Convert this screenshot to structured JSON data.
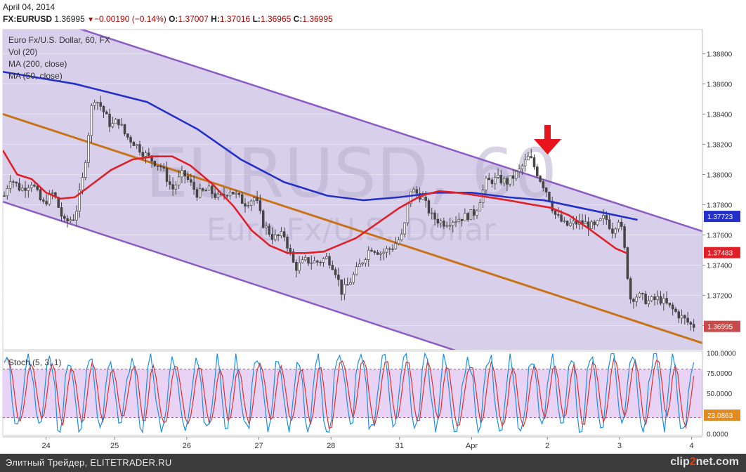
{
  "header": {
    "date": "April 04, 2014",
    "symbol": "FX:EURUSD",
    "last": "1.36995",
    "change": "−0.00190 (−0.14%)",
    "open_label": "O:",
    "open": "1.37007",
    "high_label": "H:",
    "high": "1.37016",
    "low_label": "L:",
    "low": "1.36965",
    "close_label": "C:",
    "close": "1.36995"
  },
  "legend": {
    "title": "Euro Fx/U.S. Dollar, 60, FX",
    "vol": "Vol (20)",
    "ma200": "MA (200, close)",
    "ma50": "MA (50, close)",
    "stoch": "Stoch (5, 3, 1)"
  },
  "watermark": {
    "big": "EURUSD, 60",
    "small": "Euro Fx/U.S. Dollar"
  },
  "footer": {
    "text": "Элитный Трейдер, ELITETRADER.RU",
    "logo_a": "clip",
    "logo_b": "2",
    "logo_c": "net.com"
  },
  "colors": {
    "channel_fill": "#d8d0ea",
    "channel_line": "#8c5cc4",
    "midline": "#c8731a",
    "ma200": "#2530c8",
    "ma50": "#e02028",
    "candle": "#444444",
    "stoch_fill": "#e9d3f5",
    "stoch_k": "#1f8fe0",
    "stoch_d": "#e0302a",
    "arrow": "#e8141c",
    "tag_blue": "#2530c8",
    "tag_red": "#e02028",
    "tag_price": "#c84a4a",
    "tag_stoch": "#e08a20"
  },
  "icons": {
    "arrow": "down-arrow-icon"
  },
  "chart_data": [
    {
      "type": "candlestick",
      "title": "Euro Fx/U.S. Dollar, 60, FX",
      "ylim": [
        1.3684,
        1.3896
      ],
      "y_ticks": [
        "1.38800",
        "1.38600",
        "1.38400",
        "1.38200",
        "1.38000",
        "1.37800",
        "1.37600",
        "1.37400",
        "1.37200",
        "1.37000"
      ],
      "x_tick_labels": [
        "24",
        "25",
        "26",
        "27",
        "28",
        "31",
        "Apr",
        "2",
        "3",
        "4"
      ],
      "price_tags": {
        "ma200": "1.37723",
        "ma50": "1.37483",
        "last": "1.36995"
      },
      "x_days": [
        23.6,
        24,
        24.5,
        25,
        26,
        27,
        28,
        28.6,
        29,
        29.5,
        30,
        30.5,
        31,
        32,
        33,
        33.3,
        33.5,
        34,
        34.3,
        34.6,
        35,
        35.3,
        35.6,
        36,
        36.3,
        36.6,
        37,
        37.2,
        37.4,
        37.6,
        37.8,
        38,
        38.2,
        38.4,
        38.6,
        38.8,
        39,
        39.2,
        39.4,
        39.6,
        39.8,
        40,
        40.2,
        40.4,
        40.6,
        40.8,
        41,
        41.2,
        41.4,
        41.6,
        41.8,
        42,
        42.2,
        42.4,
        42.6,
        42.8,
        43,
        43.2,
        43.4,
        43.6,
        43.8,
        44,
        44.2,
        44.4,
        44.6,
        44.8,
        45,
        45.2,
        45.4,
        45.6,
        45.8,
        46,
        46.2,
        46.4,
        46.6,
        46.8,
        47,
        47.2,
        47.4,
        47.6,
        47.8,
        48,
        48.2,
        48.4,
        48.6,
        48.8,
        49,
        49.2,
        49.4,
        49.6,
        49.8,
        50,
        50.2,
        50.4,
        50.6,
        50.8,
        51,
        51.2,
        51.4,
        51.6,
        51.8,
        52,
        52.2,
        52.4,
        52.6,
        52.8,
        53,
        53.2,
        53.4,
        53.6,
        53.8,
        54,
        54.2,
        54.4,
        54.6,
        54.8,
        55,
        55.2,
        55.4,
        55.6,
        55.8,
        56,
        56.2,
        56.4,
        56.6,
        56.8,
        57,
        57.2,
        57.4,
        57.6,
        57.8,
        58,
        58.2,
        58.4,
        58.6,
        58.8,
        59,
        59.2,
        59.4,
        59.6,
        59.8,
        60,
        60.2,
        60.4,
        60.6,
        60.8,
        61,
        61.2,
        61.4,
        61.6,
        61.8,
        62,
        62.2,
        62.4,
        62.6,
        62.8,
        63,
        63.2,
        63.4,
        63.6,
        63.8,
        64,
        64.2,
        64.4,
        64.6,
        64.8,
        65,
        65.2,
        65.4,
        65.6,
        65.8,
        66,
        66.2,
        66.4,
        66.6,
        66.8,
        67,
        67.2,
        67.4,
        67.6,
        67.8,
        68,
        68.2,
        68.4,
        68.6,
        68.8,
        69,
        69.2,
        69.4,
        69.6,
        69.8,
        70,
        70.2,
        70.4,
        70.6,
        70.8,
        71,
        71.2,
        71.4,
        71.6,
        71.8,
        72,
        72.2,
        72.4,
        72.6,
        72.8,
        73,
        73.2,
        73.4,
        73.6,
        73.8,
        74,
        74.2,
        74.4,
        74.6,
        74.8,
        75,
        75.2,
        75.4,
        75.6,
        75.8,
        76,
        76.2,
        76.4,
        76.6,
        76.8,
        77,
        77.2,
        77.4,
        77.6,
        77.8,
        78,
        78.2,
        78.4,
        78.6,
        78.8,
        79,
        79.2,
        79.4,
        79.6,
        79.8,
        80,
        80.2,
        80.4,
        80.6,
        80.8,
        81,
        81.2,
        81.4,
        81.6,
        81.8,
        82,
        82.2,
        82.4,
        82.6,
        82.8,
        83,
        83.2,
        83.4,
        83.6,
        83.8,
        84,
        84.2,
        84.4,
        84.6,
        84.8,
        85,
        85.2,
        85.4,
        85.6,
        85.8,
        86,
        86.2,
        86.4,
        86.6,
        86.8,
        87,
        87.2,
        87.4,
        87.6,
        87.8,
        88,
        88.2,
        88.4,
        88.6,
        88.8,
        89,
        89.2,
        89.4,
        89.6,
        89.8,
        90,
        90.2,
        90.4,
        90.6,
        90.8,
        91,
        91.2,
        91.4,
        91.6,
        91.8,
        92,
        92.2,
        92.4,
        92.6,
        92.8,
        93,
        93.2,
        93.4,
        93.6,
        93.8,
        94,
        94.2,
        94.4,
        94.6,
        94.8,
        95,
        95.2,
        95.4,
        95.6,
        95.8,
        96,
        96.2,
        96.4,
        96.6,
        96.8,
        97,
        97.2,
        97.4,
        97.6,
        97.8,
        98,
        98.2,
        98.4,
        98.6,
        98.8,
        99,
        99.2,
        99.4,
        99.6,
        99.8,
        100,
        100.2,
        100.4,
        100.6,
        100.8
      ],
      "price_path": [
        [
          23.5,
          1.3783
        ],
        [
          23.6,
          1.3798
        ],
        [
          23.75,
          1.379
        ],
        [
          23.9,
          1.3795
        ],
        [
          24.05,
          1.378
        ],
        [
          24.2,
          1.3788
        ],
        [
          24.35,
          1.3768
        ],
        [
          24.5,
          1.3772
        ],
        [
          24.62,
          1.38
        ],
        [
          24.75,
          1.3852
        ],
        [
          24.85,
          1.3846
        ],
        [
          25.0,
          1.3832
        ],
        [
          25.1,
          1.3836
        ],
        [
          25.2,
          1.3826
        ],
        [
          25.3,
          1.3822
        ],
        [
          25.5,
          1.3812
        ],
        [
          25.7,
          1.3805
        ],
        [
          25.85,
          1.379
        ],
        [
          26.0,
          1.3801
        ],
        [
          26.2,
          1.3787
        ],
        [
          26.35,
          1.379
        ],
        [
          26.5,
          1.3784
        ],
        [
          26.65,
          1.379
        ],
        [
          26.85,
          1.3781
        ],
        [
          27.0,
          1.3785
        ],
        [
          27.1,
          1.3768
        ],
        [
          27.25,
          1.3758
        ],
        [
          27.4,
          1.376
        ],
        [
          27.55,
          1.3738
        ],
        [
          27.7,
          1.3743
        ],
        [
          27.85,
          1.3742
        ],
        [
          28.0,
          1.3745
        ],
        [
          28.1,
          1.3738
        ],
        [
          28.2,
          1.3722
        ],
        [
          28.3,
          1.3728
        ],
        [
          28.45,
          1.374
        ],
        [
          28.6,
          1.3752
        ],
        [
          28.75,
          1.3748
        ],
        [
          28.9,
          1.3752
        ],
        [
          29.05,
          1.376
        ],
        [
          29.15,
          1.379
        ],
        [
          29.3,
          1.3786
        ],
        [
          29.45,
          1.3772
        ],
        [
          29.6,
          1.3768
        ],
        [
          29.75,
          1.377
        ],
        [
          29.9,
          1.3772
        ],
        [
          30.05,
          1.3775
        ],
        [
          30.2,
          1.3795
        ],
        [
          30.35,
          1.3797
        ],
        [
          30.5,
          1.3795
        ],
        [
          30.65,
          1.3802
        ],
        [
          30.8,
          1.3812
        ],
        [
          30.95,
          1.3797
        ],
        [
          31.05,
          1.3788
        ],
        [
          31.15,
          1.3774
        ],
        [
          31.3,
          1.3766
        ],
        [
          31.45,
          1.3768
        ],
        [
          31.55,
          1.3768
        ],
        [
          31.7,
          1.3765
        ],
        [
          31.85,
          1.3772
        ],
        [
          31.95,
          1.3763
        ],
        [
          32.05,
          1.3772
        ],
        [
          32.12,
          1.375
        ],
        [
          32.2,
          1.3718
        ],
        [
          32.3,
          1.372
        ],
        [
          32.45,
          1.3716
        ],
        [
          32.6,
          1.3718
        ],
        [
          32.75,
          1.3712
        ],
        [
          32.85,
          1.3708
        ],
        [
          32.95,
          1.3704
        ],
        [
          33.05,
          1.37
        ]
      ],
      "channel": {
        "upper": [
          [
            23.5,
            1.3913
          ],
          [
            33.1,
            1.3764
          ]
        ],
        "lower": [
          [
            23.5,
            1.3782
          ],
          [
            30.0,
            1.368
          ]
        ],
        "mid": [
          [
            23.5,
            1.384
          ],
          [
            33.1,
            1.369
          ]
        ]
      },
      "ma200": [
        [
          23.5,
          1.3868
        ],
        [
          24.5,
          1.386
        ],
        [
          25.5,
          1.3848
        ],
        [
          26.2,
          1.383
        ],
        [
          26.8,
          1.381
        ],
        [
          27.4,
          1.3795
        ],
        [
          28.0,
          1.3786
        ],
        [
          28.5,
          1.3783
        ],
        [
          29.0,
          1.3785
        ],
        [
          29.5,
          1.3788
        ],
        [
          30.0,
          1.3788
        ],
        [
          30.5,
          1.3785
        ],
        [
          31.0,
          1.3783
        ],
        [
          31.5,
          1.3778
        ],
        [
          32.0,
          1.3773
        ],
        [
          32.3,
          1.377
        ]
      ],
      "ma50": [
        [
          23.5,
          1.3816
        ],
        [
          23.7,
          1.38
        ],
        [
          23.9,
          1.3797
        ],
        [
          24.1,
          1.3788
        ],
        [
          24.3,
          1.3784
        ],
        [
          24.5,
          1.3785
        ],
        [
          24.75,
          1.3794
        ],
        [
          25.0,
          1.3803
        ],
        [
          25.3,
          1.381
        ],
        [
          25.6,
          1.3812
        ],
        [
          25.85,
          1.3812
        ],
        [
          26.1,
          1.3806
        ],
        [
          26.4,
          1.3794
        ],
        [
          26.7,
          1.3779
        ],
        [
          26.95,
          1.3763
        ],
        [
          27.2,
          1.3753
        ],
        [
          27.45,
          1.3748
        ],
        [
          27.7,
          1.3748
        ],
        [
          27.95,
          1.3749
        ],
        [
          28.15,
          1.3753
        ],
        [
          28.4,
          1.3758
        ],
        [
          28.7,
          1.3768
        ],
        [
          29.0,
          1.3778
        ],
        [
          29.3,
          1.3786
        ],
        [
          29.55,
          1.3789
        ],
        [
          29.8,
          1.3788
        ],
        [
          30.1,
          1.3786
        ],
        [
          30.5,
          1.3783
        ],
        [
          30.85,
          1.378
        ],
        [
          31.1,
          1.3778
        ],
        [
          31.35,
          1.3773
        ],
        [
          31.6,
          1.3765
        ],
        [
          31.8,
          1.3758
        ],
        [
          32.0,
          1.3751
        ],
        [
          32.15,
          1.3748
        ]
      ]
    },
    {
      "type": "line",
      "title": "Stoch (5, 3, 1)",
      "ylim": [
        -2,
        102
      ],
      "y_ticks": [
        "100.0000",
        "75.0000",
        "50.0000",
        "25.0000",
        "0.0000"
      ],
      "levels": [
        80,
        20
      ],
      "last_value": "23.0863",
      "series": []
    }
  ]
}
